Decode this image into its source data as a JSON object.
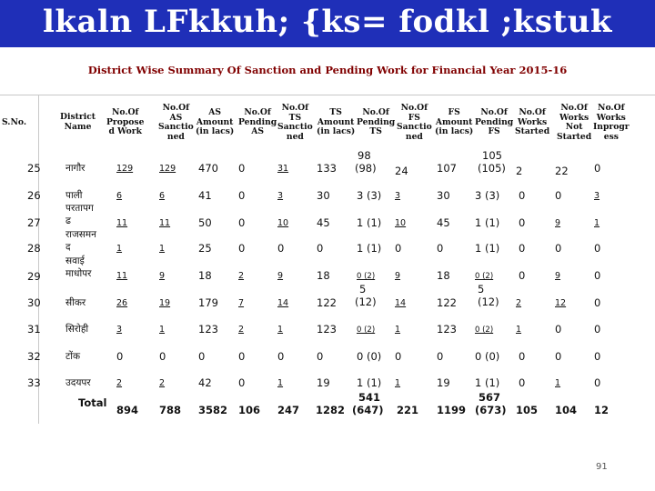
{
  "banner": {
    "title": "lkaln LFkkuh; {ks= fodkl ;kstuk"
  },
  "subtitle": "District Wise Summary Of Sanction and Pending Work for Financial Year 2015-16",
  "headers": {
    "sno": "S.No.",
    "district": "District\nName",
    "proposed": "No.Of\nPropose\nd Work",
    "as_sanctioned": "No.Of\nAS\nSanctio\nned",
    "as_amount": "AS\nAmount\n(in lacs)",
    "as_pending": "No.Of\nPending\nAS",
    "ts_sanctioned": "No.Of\nTS\nSanctio\nned",
    "ts_amount": "TS\nAmount\n(in lacs)",
    "ts_pending": "No.Of\nPending\nTS",
    "fs_sanctioned": "No.Of\nFS\nSanctio\nned",
    "fs_amount": "FS\nAmount\n(in lacs)",
    "fs_pending": "No.Of\nPending\nFS",
    "works_started": "No.Of\nWorks\nStarted",
    "works_not_started": "No.Of\nWorks\nNot\nStarted",
    "works_inprogress": "No.Of\nWorks\nInprogr\ness"
  },
  "rows": [
    {
      "sno": "25",
      "district": "नागौर",
      "proposed": "129",
      "as_s": "129",
      "as_amt": "470",
      "as_p": "0",
      "ts_s": "31",
      "ts_amt": "133",
      "ts_p1": "98",
      "ts_p2": "(98)",
      "fs_s": "24",
      "fs_amt": "107",
      "fs_p1": "105",
      "fs_p2": "(105)",
      "started": "2",
      "not_started": "22",
      "inprog": "0"
    },
    {
      "sno": "26",
      "district": "पाली",
      "proposed": "6",
      "as_s": "6",
      "as_amt": "41",
      "as_p": "0",
      "ts_s": "3",
      "ts_amt": "30",
      "ts_p": "3   (3)",
      "fs_s": "3",
      "fs_amt": "30",
      "fs_p": "3   (3)",
      "started": "0",
      "not_started": "0",
      "inprog": "3"
    },
    {
      "sno": "27",
      "district_a": "परतापग",
      "district_b": "ढ",
      "proposed": "11",
      "as_s": "11",
      "as_amt": "50",
      "as_p": "0",
      "ts_s": "10",
      "ts_amt": "45",
      "ts_p": "1   (1)",
      "fs_s": "10",
      "fs_amt": "45",
      "fs_p": "1   (1)",
      "started": "0",
      "not_started": "9",
      "inprog": "1"
    },
    {
      "sno": "28",
      "district_a": "राजसमन",
      "district_b": "द",
      "proposed": "1",
      "as_s": "1",
      "as_amt": "25",
      "as_p": "0",
      "ts_s": "0",
      "ts_amt": "0",
      "ts_p": "1   (1)",
      "fs_s": "0",
      "fs_amt": "0",
      "fs_p": "1   (1)",
      "started": "0",
      "not_started": "0",
      "inprog": "0"
    },
    {
      "sno": "29",
      "district_a": "सवाई",
      "district_b": "माधोपर",
      "proposed": "11",
      "as_s": "9",
      "as_amt": "18",
      "as_p": "2",
      "ts_s": "9",
      "ts_amt": "18",
      "ts_p": "0   (2)",
      "fs_s": "9",
      "fs_amt": "18",
      "fs_p": "0  (2)",
      "started": "0",
      "not_started": "9",
      "inprog": "0"
    },
    {
      "sno": "30",
      "district": "सीकर",
      "proposed": "26",
      "as_s": "19",
      "as_amt": "179",
      "as_p": "7",
      "ts_s": "14",
      "ts_amt": "122",
      "ts_p1": "5",
      "ts_p2": "(12)",
      "fs_s": "14",
      "fs_amt": "122",
      "fs_p1": "5",
      "fs_p2": "(12)",
      "started": "2",
      "not_started": "12",
      "inprog": "0"
    },
    {
      "sno": "31",
      "district": "सिरोही",
      "proposed": "3",
      "as_s": "1",
      "as_amt": "123",
      "as_p": "2",
      "ts_s": "1",
      "ts_amt": "123",
      "ts_p": "0   (2)",
      "fs_s": "1",
      "fs_amt": "123",
      "fs_p": "0  (2)",
      "started": "1",
      "not_started": "0",
      "inprog": "0"
    },
    {
      "sno": "32",
      "district": "टोंक",
      "proposed": "0",
      "as_s": "0",
      "as_amt": "0",
      "as_p": "0",
      "ts_s": "0",
      "ts_amt": "0",
      "ts_p": "0   (0)",
      "fs_s": "0",
      "fs_amt": "0",
      "fs_p": "0   (0)",
      "started": "0",
      "not_started": "0",
      "inprog": "0"
    },
    {
      "sno": "33",
      "district": "उदयपर",
      "proposed": "2",
      "as_s": "2",
      "as_amt": "42",
      "as_p": "0",
      "ts_s": "1",
      "ts_amt": "19",
      "ts_p": "1   (1)",
      "fs_s": "1",
      "fs_amt": "19",
      "fs_p": "1   (1)",
      "started": "0",
      "not_started": "1",
      "inprog": "0"
    }
  ],
  "total": {
    "label": "Total",
    "proposed": "894",
    "as_s": "788",
    "as_amt": "3582",
    "as_p": "106",
    "ts_s": "247",
    "ts_amt": "1282",
    "ts_p1": "541",
    "ts_p2": "(647)",
    "fs_s": "221",
    "fs_amt": "1199",
    "fs_p1": "567",
    "fs_p2": "(673)",
    "started": "105",
    "not_started": "104",
    "inprog": "12"
  },
  "page_number": "91"
}
